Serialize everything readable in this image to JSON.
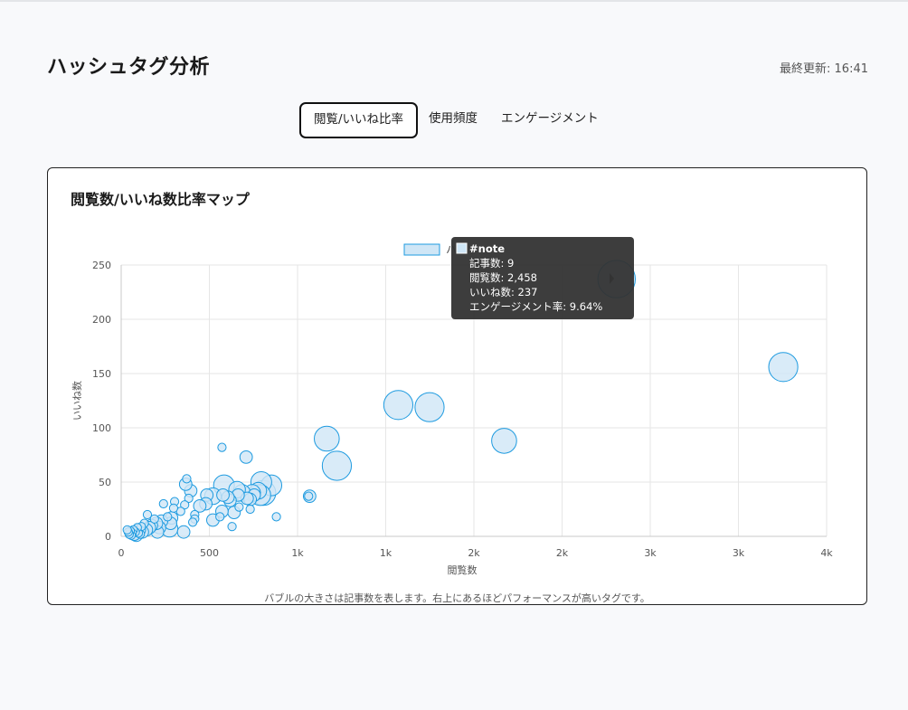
{
  "header": {
    "title": "ハッシュタグ分析",
    "last_updated": "最終更新: 16:41"
  },
  "tabs": [
    {
      "label": "閲覧/いいね比率",
      "active": true
    },
    {
      "label": "使用頻度",
      "active": false
    },
    {
      "label": "エンゲージメント",
      "active": false
    }
  ],
  "card": {
    "title": "閲覧数/いいね数比率マップ",
    "caption": "バブルの大きさは記事数を表します。右上にあるほどパフォーマンスが高いタグです。"
  },
  "colors": {
    "bubble_fill": "#cfe6f6",
    "bubble_stroke": "#1e9be0",
    "tooltip_bg": "#333333"
  },
  "chart_data": {
    "type": "scatter",
    "xlabel": "閲覧数",
    "ylabel": "いいね数",
    "x_ticks": [
      "0",
      "500",
      "1k",
      "1k",
      "2k",
      "2k",
      "3k",
      "3k",
      "4k"
    ],
    "xlim": [
      0,
      3500
    ],
    "y_ticks": [
      "0",
      "50",
      "100",
      "150",
      "200",
      "250"
    ],
    "ylim": [
      0,
      250
    ],
    "grid": true,
    "legend_position": "top-center",
    "series": [
      {
        "points": [
          {
            "x": 2458,
            "y": 237,
            "r": 9
          },
          {
            "x": 3285,
            "y": 156,
            "r": 7
          },
          {
            "x": 1900,
            "y": 88,
            "r": 6
          },
          {
            "x": 1530,
            "y": 119,
            "r": 7
          },
          {
            "x": 1375,
            "y": 121,
            "r": 7
          },
          {
            "x": 1070,
            "y": 65,
            "r": 7
          },
          {
            "x": 1020,
            "y": 90,
            "r": 6
          },
          {
            "x": 935,
            "y": 37,
            "r": 3
          },
          {
            "x": 930,
            "y": 37,
            "r": 2
          },
          {
            "x": 745,
            "y": 47,
            "r": 5
          },
          {
            "x": 770,
            "y": 18,
            "r": 2
          },
          {
            "x": 695,
            "y": 50,
            "r": 5
          },
          {
            "x": 705,
            "y": 40,
            "r": 6
          },
          {
            "x": 690,
            "y": 38,
            "r": 5
          },
          {
            "x": 680,
            "y": 42,
            "r": 4
          },
          {
            "x": 660,
            "y": 38,
            "r": 3
          },
          {
            "x": 650,
            "y": 40,
            "r": 4
          },
          {
            "x": 640,
            "y": 34,
            "r": 3
          },
          {
            "x": 640,
            "y": 25,
            "r": 2
          },
          {
            "x": 625,
            "y": 35,
            "r": 3
          },
          {
            "x": 620,
            "y": 73,
            "r": 3
          },
          {
            "x": 600,
            "y": 40,
            "r": 4
          },
          {
            "x": 585,
            "y": 27,
            "r": 2
          },
          {
            "x": 580,
            "y": 38,
            "r": 3
          },
          {
            "x": 575,
            "y": 43,
            "r": 4
          },
          {
            "x": 560,
            "y": 22,
            "r": 3
          },
          {
            "x": 550,
            "y": 9,
            "r": 2
          },
          {
            "x": 540,
            "y": 33,
            "r": 3
          },
          {
            "x": 530,
            "y": 36,
            "r": 3
          },
          {
            "x": 510,
            "y": 47,
            "r": 5
          },
          {
            "x": 505,
            "y": 38,
            "r": 3
          },
          {
            "x": 500,
            "y": 82,
            "r": 2
          },
          {
            "x": 500,
            "y": 23,
            "r": 3
          },
          {
            "x": 490,
            "y": 18,
            "r": 2
          },
          {
            "x": 455,
            "y": 37,
            "r": 4
          },
          {
            "x": 455,
            "y": 15,
            "r": 3
          },
          {
            "x": 425,
            "y": 38,
            "r": 3
          },
          {
            "x": 420,
            "y": 30,
            "r": 3
          },
          {
            "x": 390,
            "y": 28,
            "r": 3
          },
          {
            "x": 365,
            "y": 20,
            "r": 2
          },
          {
            "x": 365,
            "y": 16,
            "r": 2
          },
          {
            "x": 355,
            "y": 13,
            "r": 2
          },
          {
            "x": 345,
            "y": 42,
            "r": 3
          },
          {
            "x": 335,
            "y": 35,
            "r": 2
          },
          {
            "x": 325,
            "y": 53,
            "r": 2
          },
          {
            "x": 320,
            "y": 48,
            "r": 3
          },
          {
            "x": 315,
            "y": 29,
            "r": 2
          },
          {
            "x": 310,
            "y": 4,
            "r": 3
          },
          {
            "x": 295,
            "y": 23,
            "r": 2
          },
          {
            "x": 265,
            "y": 32,
            "r": 2
          },
          {
            "x": 260,
            "y": 26,
            "r": 2
          },
          {
            "x": 250,
            "y": 17,
            "r": 3
          },
          {
            "x": 245,
            "y": 12,
            "r": 3
          },
          {
            "x": 240,
            "y": 7,
            "r": 4
          },
          {
            "x": 230,
            "y": 18,
            "r": 2
          },
          {
            "x": 210,
            "y": 30,
            "r": 2
          },
          {
            "x": 200,
            "y": 14,
            "r": 3
          },
          {
            "x": 190,
            "y": 8,
            "r": 3
          },
          {
            "x": 180,
            "y": 4,
            "r": 3
          },
          {
            "x": 175,
            "y": 12,
            "r": 3
          },
          {
            "x": 165,
            "y": 16,
            "r": 2
          },
          {
            "x": 150,
            "y": 10,
            "r": 3
          },
          {
            "x": 140,
            "y": 8,
            "r": 3
          },
          {
            "x": 130,
            "y": 20,
            "r": 2
          },
          {
            "x": 125,
            "y": 6,
            "r": 3
          },
          {
            "x": 115,
            "y": 12,
            "r": 2
          },
          {
            "x": 105,
            "y": 4,
            "r": 3
          },
          {
            "x": 100,
            "y": 9,
            "r": 2
          },
          {
            "x": 95,
            "y": 2,
            "r": 2
          },
          {
            "x": 90,
            "y": 6,
            "r": 3
          },
          {
            "x": 85,
            "y": 3,
            "r": 2
          },
          {
            "x": 80,
            "y": 8,
            "r": 2
          },
          {
            "x": 75,
            "y": 1,
            "r": 3
          },
          {
            "x": 70,
            "y": 4,
            "r": 2
          },
          {
            "x": 65,
            "y": 2,
            "r": 3
          },
          {
            "x": 60,
            "y": 6,
            "r": 2
          },
          {
            "x": 55,
            "y": 3,
            "r": 2
          },
          {
            "x": 50,
            "y": 1,
            "r": 2
          },
          {
            "x": 45,
            "y": 5,
            "r": 2
          },
          {
            "x": 40,
            "y": 2,
            "r": 2
          },
          {
            "x": 35,
            "y": 4,
            "r": 2
          },
          {
            "x": 30,
            "y": 6,
            "r": 2
          }
        ]
      }
    ],
    "tooltip": {
      "tag": "#note",
      "lines": [
        "記事数: 9",
        "閲覧数: 2,458",
        "いいね数: 237",
        "エンゲージメント率: 9.64%"
      ]
    }
  }
}
